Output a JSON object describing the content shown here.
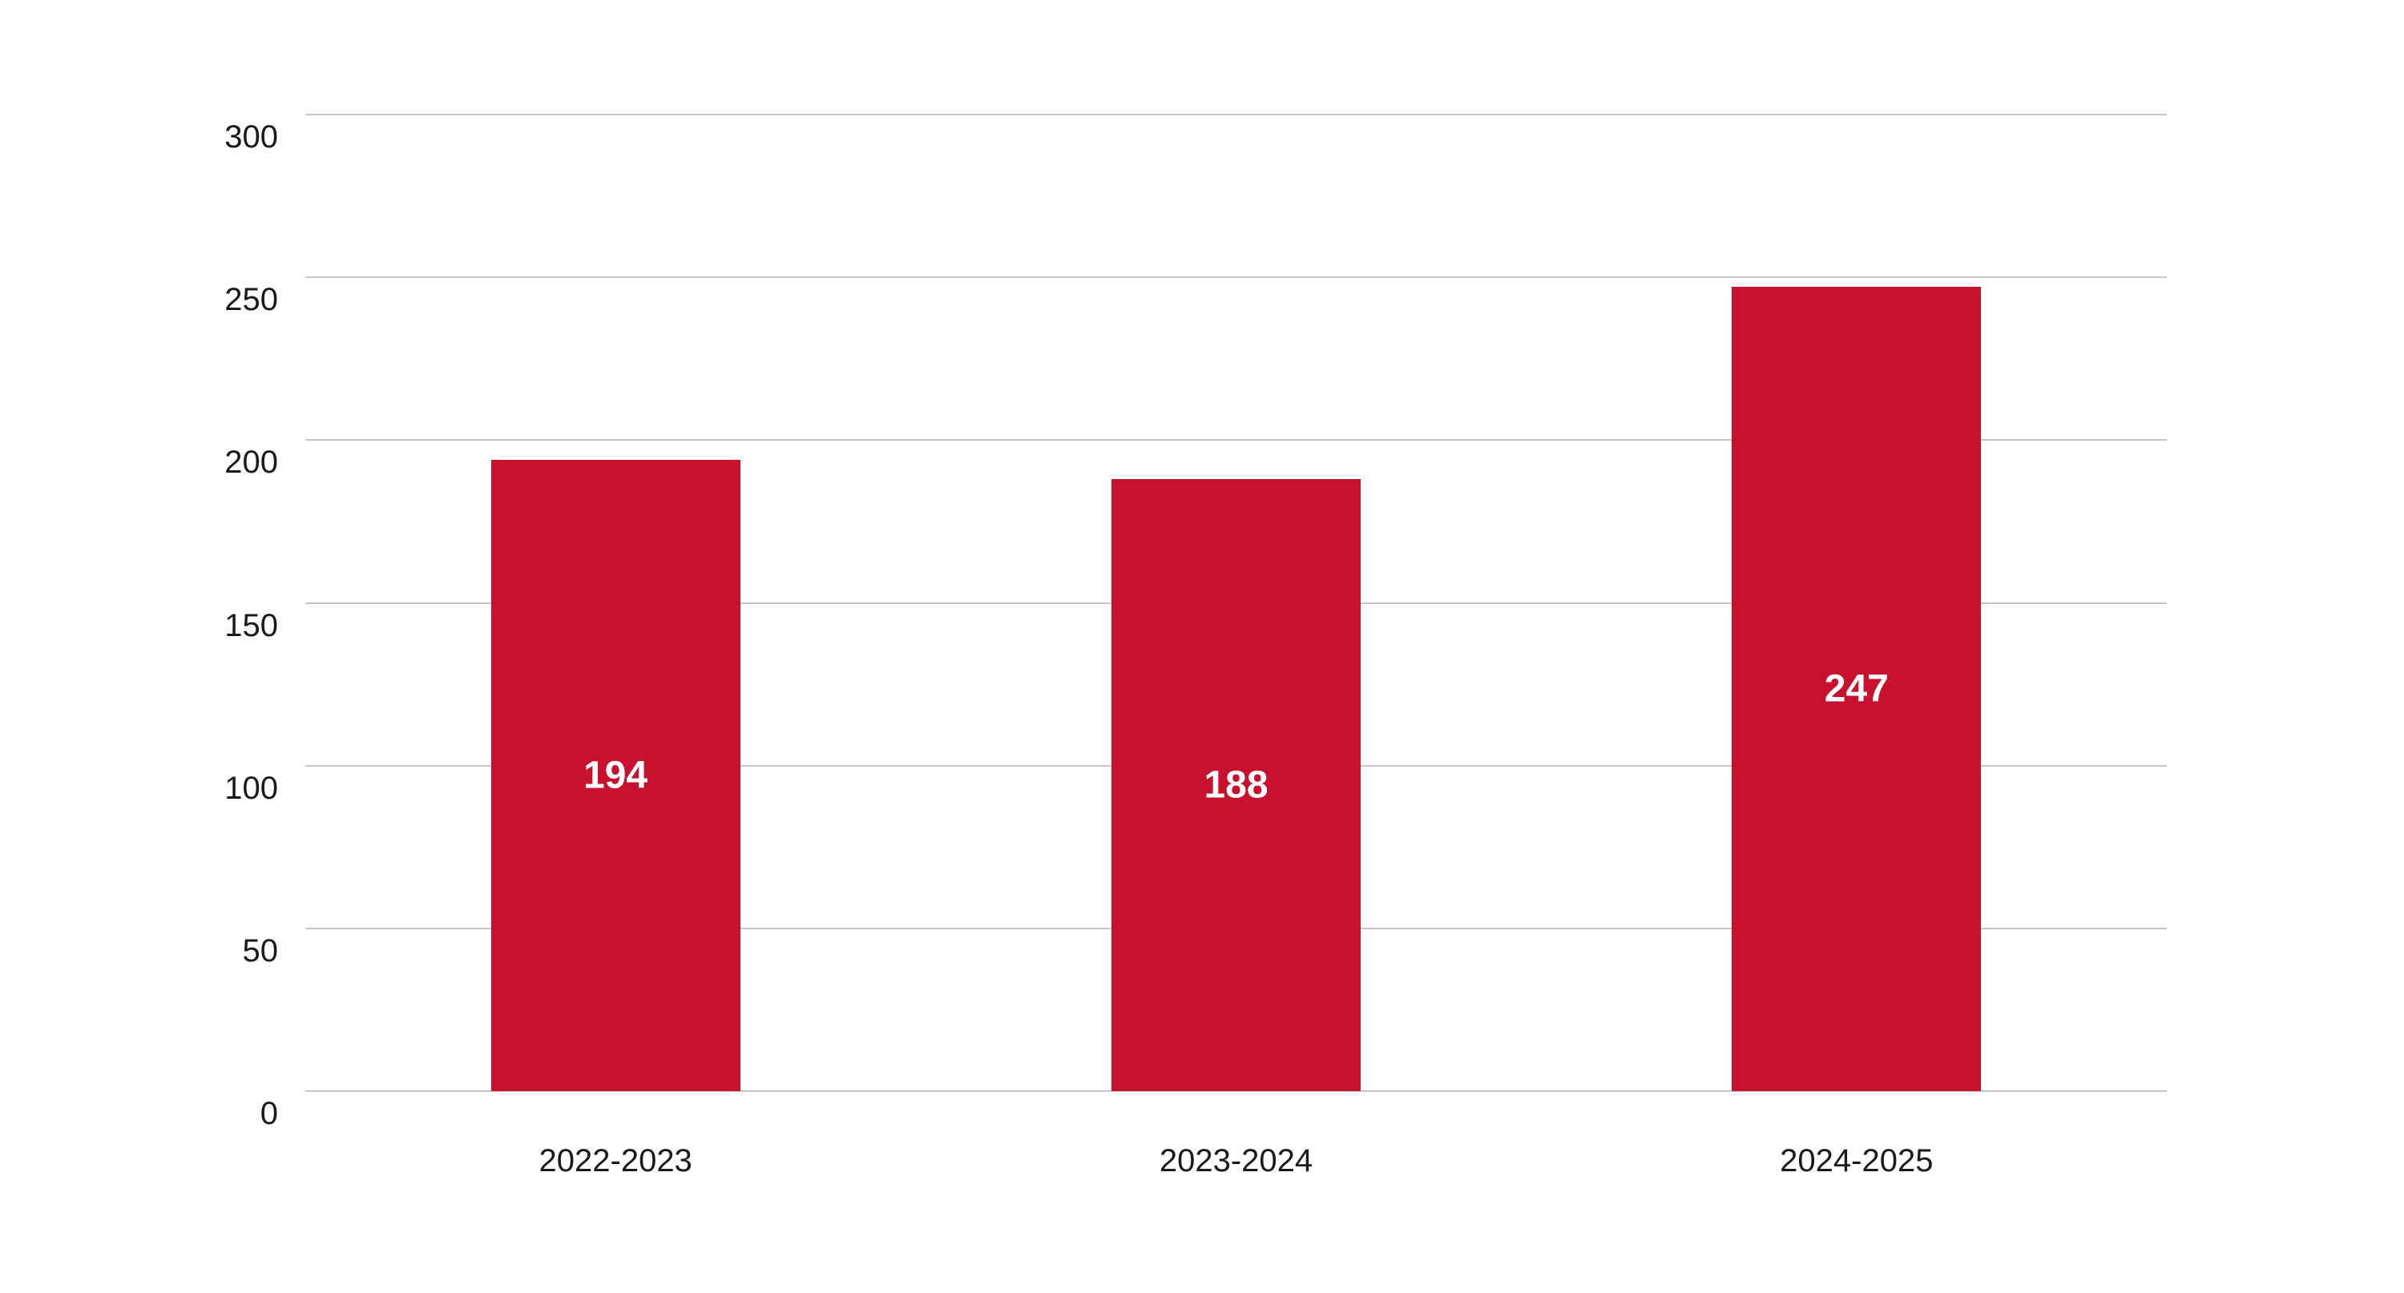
{
  "chart_data": {
    "type": "bar",
    "title": "",
    "categories": [
      "2022-2023",
      "2023-2024",
      "2024-2025"
    ],
    "values": [
      194,
      188,
      247
    ],
    "value_labels": [
      "194",
      "188",
      "247"
    ],
    "y_ticks": [
      "300",
      "250",
      "200",
      "150",
      "100",
      "50",
      "0"
    ],
    "y_tick_values": [
      300,
      250,
      200,
      150,
      100,
      50,
      0
    ],
    "ylim": [
      0,
      300
    ],
    "xlabel": "",
    "ylabel": "",
    "grid": "horizontal",
    "legend_position": "none",
    "orientation": "vertical",
    "bar_color": "#c8112e",
    "value_label_color": "#ffffff",
    "axis_text_color": "#1a1a1a",
    "gridline_color": "#c6c6c6",
    "background_color": "#ffffff"
  }
}
